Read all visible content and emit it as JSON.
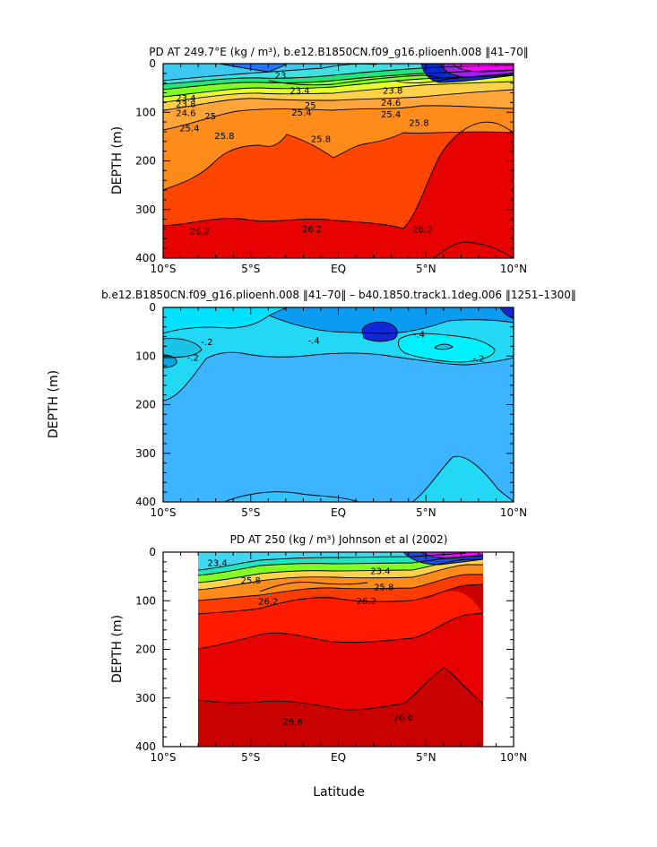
{
  "figure": {
    "xlabel": "Latitude",
    "ylabel": "DEPTH (m)",
    "xtick_labels": [
      "10°S",
      "5°S",
      "EQ",
      "5°N",
      "10°N"
    ],
    "ytick_labels": [
      "0",
      "100",
      "200",
      "300",
      "400"
    ]
  },
  "chart_data": [
    {
      "id": "p1",
      "type": "heatmap",
      "title": "PD AT 249.7°E (kg / m³), b.e12.B1850CN.f09_g16.plioenh.008 ‖41–70‖",
      "xlabel": "",
      "ylabel": "DEPTH (m)",
      "xlim": [
        -10,
        10
      ],
      "ylim": [
        0,
        400
      ],
      "y_inverted": true,
      "contour_labels": [
        {
          "text": "23",
          "lat": -3.3,
          "depth": 24
        },
        {
          "text": "23.4",
          "lat": -8.7,
          "depth": 71
        },
        {
          "text": "23.8",
          "lat": -8.7,
          "depth": 83
        },
        {
          "text": "24.6",
          "lat": -8.7,
          "depth": 101
        },
        {
          "text": "25",
          "lat": -7.3,
          "depth": 108
        },
        {
          "text": "25.4",
          "lat": -8.5,
          "depth": 133
        },
        {
          "text": "25.8",
          "lat": -6.5,
          "depth": 148
        },
        {
          "text": "23.4",
          "lat": -2.2,
          "depth": 55
        },
        {
          "text": "25",
          "lat": -1.6,
          "depth": 86
        },
        {
          "text": "25.4",
          "lat": -2.1,
          "depth": 100
        },
        {
          "text": "25.8",
          "lat": -1.0,
          "depth": 155
        },
        {
          "text": "23.8",
          "lat": 3.1,
          "depth": 55
        },
        {
          "text": "24.6",
          "lat": 3.0,
          "depth": 80
        },
        {
          "text": "25.4",
          "lat": 3.0,
          "depth": 104
        },
        {
          "text": "25.8",
          "lat": 4.6,
          "depth": 122
        },
        {
          "text": "26.2",
          "lat": -7.9,
          "depth": 345
        },
        {
          "text": "26.2",
          "lat": -1.5,
          "depth": 340
        },
        {
          "text": "26.2",
          "lat": 4.8,
          "depth": 341
        }
      ]
    },
    {
      "id": "p2",
      "type": "heatmap",
      "title": "b.e12.B1850CN.f09_g16.plioenh.008 ‖41–70‖ – b40.1850.track1.1deg.006 ‖1251–1300‖",
      "xlabel": "",
      "ylabel": "DEPTH (m)",
      "xlim": [
        -10,
        10
      ],
      "ylim": [
        0,
        400
      ],
      "y_inverted": true,
      "contour_labels": [
        {
          "text": "-.4",
          "lat": -1.4,
          "depth": 68
        },
        {
          "text": "-.4",
          "lat": 4.6,
          "depth": 55
        },
        {
          "text": "-.2",
          "lat": -7.5,
          "depth": 71
        },
        {
          "text": "-.2",
          "lat": -8.3,
          "depth": 103
        },
        {
          "text": "-.2",
          "lat": 8.0,
          "depth": 105
        }
      ]
    },
    {
      "id": "p3",
      "type": "heatmap",
      "title": "PD AT 250 (kg / m³) Johnson et al (2002)",
      "xlabel": "Latitude",
      "ylabel": "DEPTH (m)",
      "xlim": [
        -10,
        10
      ],
      "ylim": [
        0,
        400
      ],
      "data_xrange": [
        -8,
        8.2
      ],
      "y_inverted": true,
      "contour_labels": [
        {
          "text": "23.4",
          "lat": -6.9,
          "depth": 22
        },
        {
          "text": "25.8",
          "lat": -5.0,
          "depth": 58
        },
        {
          "text": "26.2",
          "lat": -4.0,
          "depth": 101
        },
        {
          "text": "23.4",
          "lat": 2.4,
          "depth": 39
        },
        {
          "text": "25.8",
          "lat": 2.6,
          "depth": 72
        },
        {
          "text": "26.2",
          "lat": 1.6,
          "depth": 100
        },
        {
          "text": "26.6",
          "lat": -2.6,
          "depth": 348
        },
        {
          "text": "26.6",
          "lat": 3.7,
          "depth": 340
        }
      ]
    }
  ]
}
